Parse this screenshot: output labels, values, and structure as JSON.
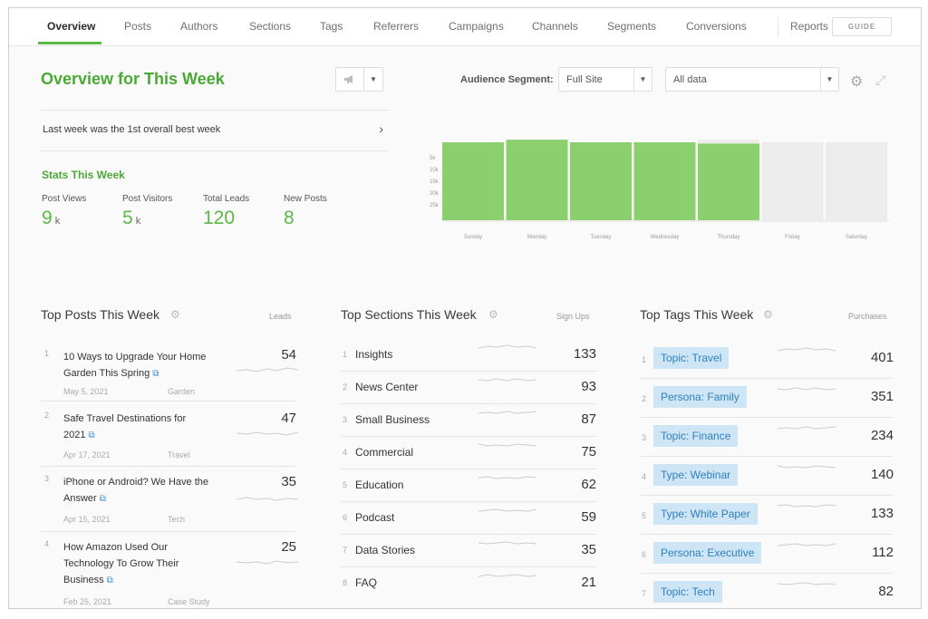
{
  "nav": {
    "tabs": [
      "Overview",
      "Posts",
      "Authors",
      "Sections",
      "Tags",
      "Referrers",
      "Campaigns",
      "Channels",
      "Segments",
      "Conversions"
    ],
    "active_tab": "Overview",
    "reports_label": "Reports",
    "guide_label": "GUIDE"
  },
  "overview": {
    "title": "Overview for This Week",
    "best_week_text": "Last week was the 1st overall best week"
  },
  "stats": {
    "title": "Stats This Week",
    "items": [
      {
        "label": "Post Views",
        "value": "9",
        "unit": "k"
      },
      {
        "label": "Post Visitors",
        "value": "5",
        "unit": "k"
      },
      {
        "label": "Total Leads",
        "value": "120",
        "unit": ""
      },
      {
        "label": "New Posts",
        "value": "8",
        "unit": ""
      }
    ]
  },
  "audience": {
    "label": "Audience Segment:",
    "segment_value": "Full Site",
    "data_value": "All data"
  },
  "icons": {
    "megaphone": "megaphone-icon",
    "dropdown": "caret-down-icon",
    "chevron": "chevron-right-icon",
    "settings": "gear-icon",
    "expand": "expand-icon",
    "external": "external-link-icon"
  },
  "chart_data": {
    "type": "bar",
    "categories": [
      "Sunday",
      "Monday",
      "Tuesday",
      "Wednesday",
      "Thursday",
      "Friday",
      "Saturday"
    ],
    "values": [
      30000,
      31000,
      30000,
      30000,
      29500,
      0,
      0
    ],
    "projected_values": [
      null,
      null,
      null,
      null,
      31000,
      30000,
      30000
    ],
    "y_ticks": [
      "5k",
      "10k",
      "15k",
      "20k",
      "25k"
    ],
    "ylim": [
      0,
      30000
    ],
    "grid": false,
    "colors": {
      "actual": "#8ccf6e",
      "projected": "#ececec"
    }
  },
  "top_posts": {
    "title": "Top Posts This Week",
    "column": "Leads",
    "items": [
      {
        "title": "10 Ways to Upgrade Your Home Garden This Spring",
        "date": "May 5, 2021",
        "category": "Garden",
        "value": "54"
      },
      {
        "title": "Safe Travel Destinations for 2021",
        "date": "Apr 17, 2021",
        "category": "Travel",
        "value": "47"
      },
      {
        "title": "iPhone or Android? We Have the Answer",
        "date": "Apr 15, 2021",
        "category": "Tech",
        "value": "35"
      },
      {
        "title": "How Amazon Used Our Technology To Grow Their Business",
        "date": "Feb 25, 2021",
        "category": "Case Study",
        "value": "25"
      }
    ]
  },
  "top_sections": {
    "title": "Top Sections This Week",
    "column": "Sign Ups",
    "items": [
      {
        "name": "Insights",
        "value": "133"
      },
      {
        "name": "News Center",
        "value": "93"
      },
      {
        "name": "Small Business",
        "value": "87"
      },
      {
        "name": "Commercial",
        "value": "75"
      },
      {
        "name": "Education",
        "value": "62"
      },
      {
        "name": "Podcast",
        "value": "59"
      },
      {
        "name": "Data Stories",
        "value": "35"
      },
      {
        "name": "FAQ",
        "value": "21"
      }
    ]
  },
  "top_tags": {
    "title": "Top Tags This Week",
    "column": "Purchases",
    "items": [
      {
        "name": "Topic: Travel",
        "value": "401"
      },
      {
        "name": "Persona: Family",
        "value": "351"
      },
      {
        "name": "Topic: Finance",
        "value": "234"
      },
      {
        "name": "Type: Webinar",
        "value": "140"
      },
      {
        "name": "Type: White Paper",
        "value": "133"
      },
      {
        "name": "Persona: Executive",
        "value": "112"
      },
      {
        "name": "Topic: Tech",
        "value": "82"
      }
    ]
  }
}
